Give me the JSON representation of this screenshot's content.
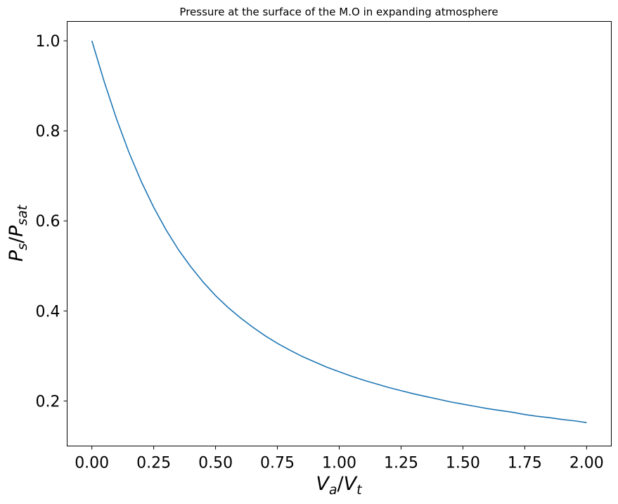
{
  "chart_data": {
    "type": "line",
    "title": "Pressure at the surface of the M.O in expanding atmosphere",
    "xlabel": {
      "base1": "V",
      "sub1": "a",
      "slash": "/",
      "base2": "V",
      "sub2": "t"
    },
    "ylabel": {
      "base1": "P",
      "sub1": "s",
      "slash": "/",
      "base2": "P",
      "sub2": "sat"
    },
    "xlim": [
      -0.1,
      2.1
    ],
    "ylim": [
      0.1,
      1.043
    ],
    "xticks": [
      0.0,
      0.25,
      0.5,
      0.75,
      1.0,
      1.25,
      1.5,
      1.75,
      2.0
    ],
    "xtick_labels": [
      "0.00",
      "0.25",
      "0.50",
      "0.75",
      "1.00",
      "1.25",
      "1.50",
      "1.75",
      "2.00"
    ],
    "yticks": [
      0.2,
      0.4,
      0.6,
      0.8,
      1.0
    ],
    "ytick_labels": [
      "0.2",
      "0.4",
      "0.6",
      "0.8",
      "1.0"
    ],
    "grid": false,
    "line_color": "#1f77b4",
    "series": [
      {
        "x": [
          0.0,
          0.05,
          0.1,
          0.15,
          0.2,
          0.25,
          0.3,
          0.35,
          0.4,
          0.45,
          0.5,
          0.55,
          0.6,
          0.65,
          0.7,
          0.75,
          0.8,
          0.85,
          0.9,
          0.95,
          1.0,
          1.05,
          1.1,
          1.15,
          1.2,
          1.25,
          1.3,
          1.35,
          1.4,
          1.45,
          1.5,
          1.55,
          1.6,
          1.65,
          1.7,
          1.75,
          1.8,
          1.85,
          1.9,
          1.95,
          2.0
        ],
        "y": [
          1.0,
          0.909,
          0.826,
          0.752,
          0.687,
          0.63,
          0.58,
          0.536,
          0.498,
          0.464,
          0.434,
          0.408,
          0.385,
          0.364,
          0.345,
          0.328,
          0.313,
          0.299,
          0.287,
          0.275,
          0.265,
          0.255,
          0.246,
          0.238,
          0.23,
          0.223,
          0.216,
          0.21,
          0.204,
          0.198,
          0.193,
          0.188,
          0.183,
          0.179,
          0.175,
          0.17,
          0.166,
          0.163,
          0.159,
          0.156,
          0.152
        ]
      }
    ]
  }
}
